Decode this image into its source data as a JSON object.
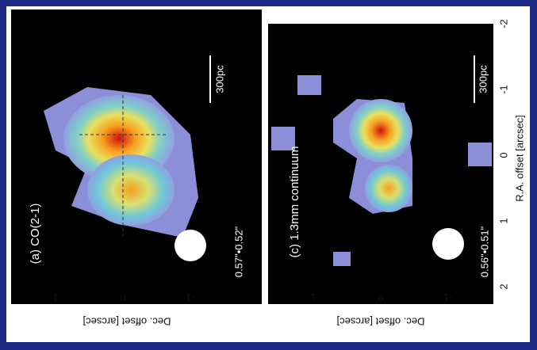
{
  "panels": [
    {
      "label": "(a) CO(2-1)",
      "scale_bar": "300pc",
      "beam": "0.57\"•0.52\"",
      "dec_ticks": [
        "1",
        "0",
        "-1"
      ]
    },
    {
      "label": "(c) 1.3mm continuum",
      "scale_bar": "300pc",
      "beam": "0.56\"•0.51\"",
      "dec_ticks": [
        "1",
        "0",
        "-1"
      ]
    }
  ],
  "dec_axis_label": "Dec. offset [arcsec]",
  "ra_axis_label": "R.A. offset [arcsec]",
  "ra_ticks": [
    "-2",
    "-1",
    "0",
    "1",
    "2"
  ]
}
